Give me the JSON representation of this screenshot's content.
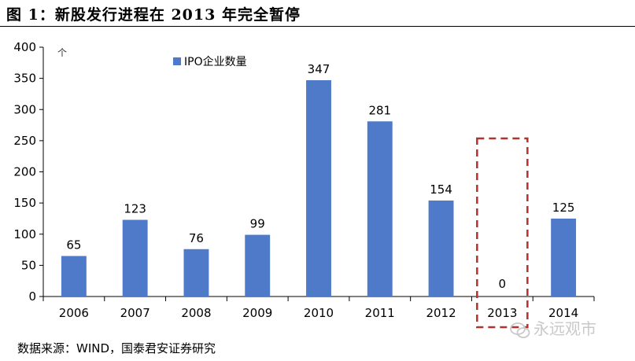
{
  "figure": {
    "title": "图 1：新股发行进程在 2013 年完全暂停",
    "source": "数据来源：WIND，国泰君安证券研究",
    "watermark": "永远观市"
  },
  "chart_data": {
    "type": "bar",
    "unit_label": "个",
    "categories": [
      "2006",
      "2007",
      "2008",
      "2009",
      "2010",
      "2011",
      "2012",
      "2013",
      "2014"
    ],
    "series": [
      {
        "name": "IPO企业数量",
        "values": [
          65,
          123,
          76,
          99,
          347,
          281,
          154,
          0,
          125
        ],
        "color": "#4f7ac9"
      }
    ],
    "ylim": [
      0,
      400
    ],
    "yticks": [
      0,
      50,
      100,
      150,
      200,
      250,
      300,
      350,
      400
    ],
    "grid": false,
    "legend": "top-left",
    "highlight": {
      "category": "2013",
      "style": "dashed-box",
      "color": "#b0332e"
    }
  }
}
